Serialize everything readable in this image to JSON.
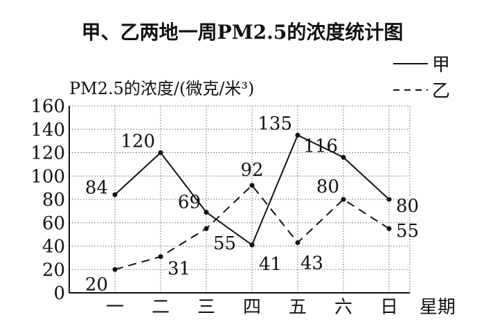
{
  "chart_data": {
    "type": "line",
    "title": "甲、乙两地一周PM2.5的浓度统计图",
    "ylabel": "PM2.5的浓度/(微克/米³)",
    "xlabel": "星期",
    "categories": [
      "一",
      "二",
      "三",
      "四",
      "五",
      "六",
      "日"
    ],
    "ylim": [
      0,
      160
    ],
    "yticks": [
      0,
      20,
      40,
      60,
      80,
      100,
      120,
      140,
      160
    ],
    "grid": true,
    "legend_position": "top-right",
    "series": [
      {
        "name": "甲",
        "style": "solid",
        "values": [
          84,
          120,
          69,
          41,
          135,
          116,
          80
        ]
      },
      {
        "name": "乙",
        "style": "dashed",
        "values": [
          20,
          31,
          55,
          92,
          43,
          80,
          55
        ]
      }
    ]
  }
}
